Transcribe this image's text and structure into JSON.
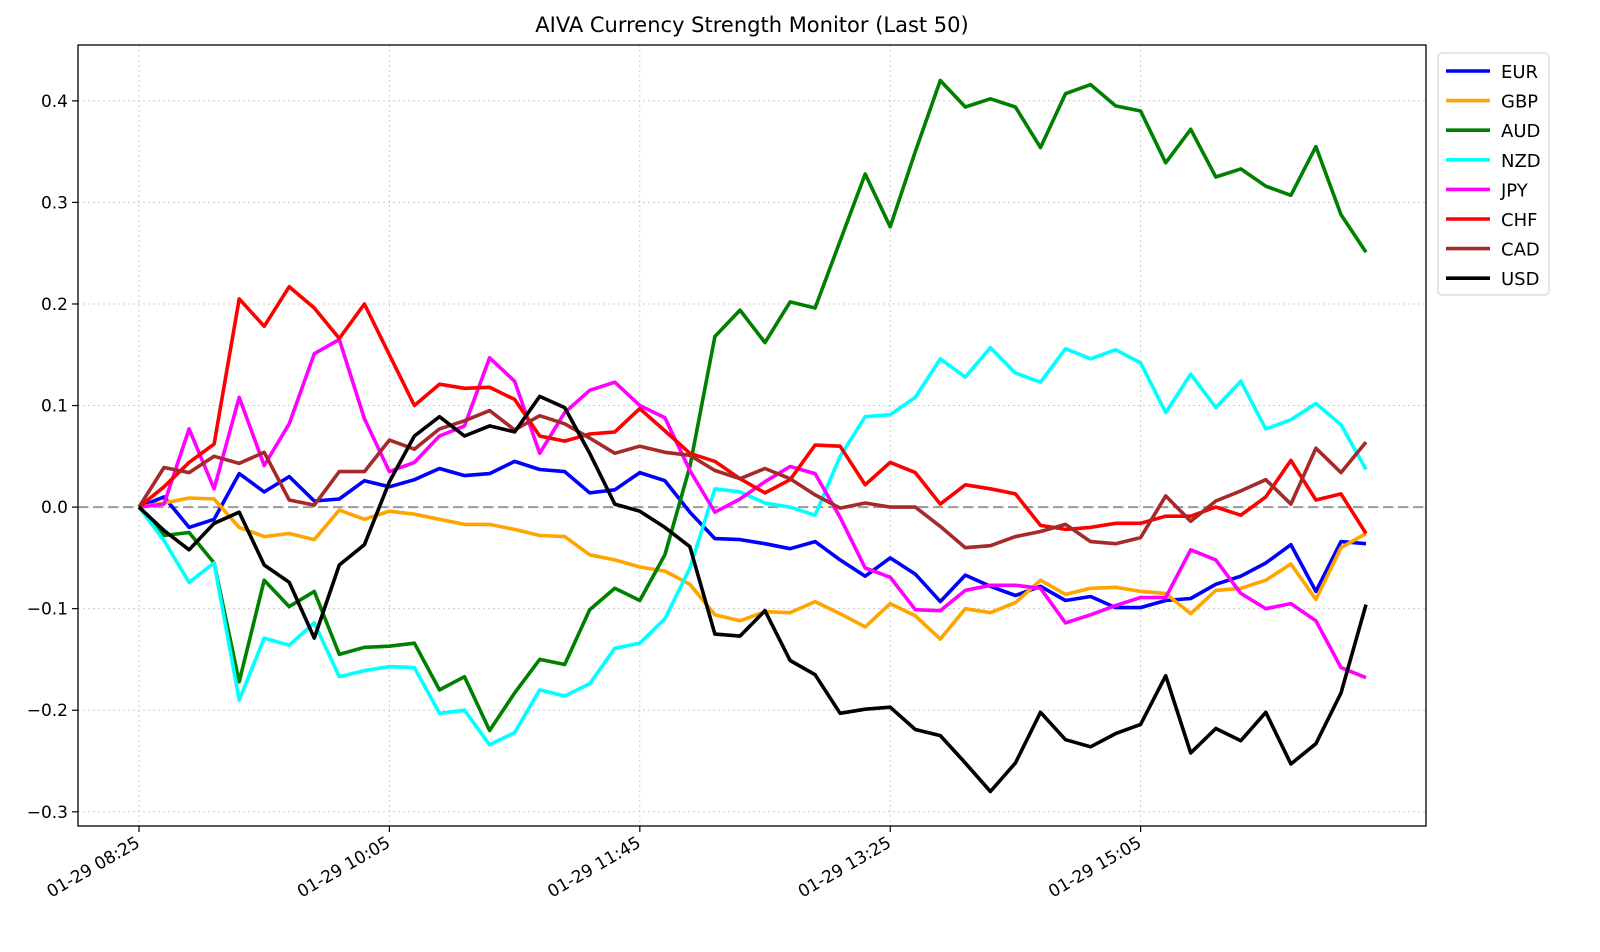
{
  "chart_data": {
    "type": "line",
    "title": "AIVA Currency Strength Monitor (Last 50)",
    "xlabel": "",
    "ylabel": "",
    "x": [
      "01-29 08:25",
      "01-29 08:35",
      "01-29 08:45",
      "01-29 08:55",
      "01-29 09:05",
      "01-29 09:15",
      "01-29 09:25",
      "01-29 09:35",
      "01-29 09:45",
      "01-29 09:55",
      "01-29 10:05",
      "01-29 10:15",
      "01-29 10:25",
      "01-29 10:35",
      "01-29 10:45",
      "01-29 10:55",
      "01-29 11:05",
      "01-29 11:15",
      "01-29 11:25",
      "01-29 11:35",
      "01-29 11:45",
      "01-29 11:55",
      "01-29 12:05",
      "01-29 12:15",
      "01-29 12:25",
      "01-29 12:35",
      "01-29 12:45",
      "01-29 12:55",
      "01-29 13:05",
      "01-29 13:15",
      "01-29 13:25",
      "01-29 13:35",
      "01-29 13:45",
      "01-29 13:55",
      "01-29 14:05",
      "01-29 14:15",
      "01-29 14:25",
      "01-29 14:35",
      "01-29 14:45",
      "01-29 14:55",
      "01-29 15:05",
      "01-29 15:15",
      "01-29 15:25",
      "01-29 15:35",
      "01-29 15:45",
      "01-29 15:55",
      "01-29 16:05",
      "01-29 16:15",
      "01-29 16:25",
      "01-29 16:35"
    ],
    "xticklabels": [
      "01-29 08:25",
      "01-29 10:05",
      "01-29 11:45",
      "01-29 13:25",
      "01-29 15:05"
    ],
    "yticks": [
      -0.3,
      -0.2,
      -0.1,
      0.0,
      0.1,
      0.2,
      0.3,
      0.4
    ],
    "yticklabels": [
      "−0.3",
      "−0.2",
      "−0.1",
      "0.0",
      "0.1",
      "0.2",
      "0.3",
      "0.4"
    ],
    "ylim": [
      -0.314,
      0.455
    ],
    "grid": true,
    "reference_line": 0.0,
    "legend_placement": "outside-top-right",
    "series": [
      {
        "name": "EUR",
        "color": "#0000ff",
        "values": [
          0,
          0.01,
          -0.02,
          -0.012,
          0.033,
          0.015,
          0.03,
          0.006,
          0.008,
          0.026,
          0.02,
          0.027,
          0.038,
          0.031,
          0.033,
          0.045,
          0.037,
          0.035,
          0.014,
          0.017,
          0.034,
          0.026,
          -0.005,
          -0.031,
          -0.032,
          -0.036,
          -0.041,
          -0.034,
          -0.052,
          -0.068,
          -0.05,
          -0.066,
          -0.093,
          -0.067,
          -0.078,
          -0.087,
          -0.078,
          -0.092,
          -0.088,
          -0.099,
          -0.099,
          -0.092,
          -0.09,
          -0.076,
          -0.068,
          -0.055,
          -0.037,
          -0.083,
          -0.034,
          -0.036
        ]
      },
      {
        "name": "GBP",
        "color": "#ffa500",
        "values": [
          0,
          0.004,
          0.009,
          0.008,
          -0.02,
          -0.029,
          -0.026,
          -0.032,
          -0.003,
          -0.012,
          -0.004,
          -0.007,
          -0.012,
          -0.017,
          -0.017,
          -0.022,
          -0.028,
          -0.029,
          -0.047,
          -0.052,
          -0.059,
          -0.063,
          -0.076,
          -0.106,
          -0.112,
          -0.103,
          -0.104,
          -0.093,
          -0.105,
          -0.118,
          -0.095,
          -0.107,
          -0.13,
          -0.1,
          -0.104,
          -0.094,
          -0.072,
          -0.086,
          -0.08,
          -0.079,
          -0.083,
          -0.085,
          -0.105,
          -0.082,
          -0.08,
          -0.072,
          -0.056,
          -0.091,
          -0.04,
          -0.026
        ]
      },
      {
        "name": "AUD",
        "color": "#008000",
        "values": [
          0,
          -0.028,
          -0.025,
          -0.055,
          -0.172,
          -0.072,
          -0.098,
          -0.083,
          -0.145,
          -0.138,
          -0.137,
          -0.134,
          -0.18,
          -0.167,
          -0.22,
          -0.183,
          -0.15,
          -0.155,
          -0.101,
          -0.08,
          -0.092,
          -0.047,
          0.04,
          0.168,
          0.194,
          0.162,
          0.202,
          0.196,
          0.262,
          0.328,
          0.276,
          0.35,
          0.42,
          0.394,
          0.402,
          0.394,
          0.354,
          0.407,
          0.416,
          0.395,
          0.39,
          0.339,
          0.372,
          0.325,
          0.333,
          0.316,
          0.307,
          0.355,
          0.288,
          0.251
        ]
      },
      {
        "name": "NZD",
        "color": "#00ffff",
        "values": [
          0,
          -0.033,
          -0.074,
          -0.055,
          -0.19,
          -0.129,
          -0.136,
          -0.114,
          -0.167,
          -0.161,
          -0.157,
          -0.158,
          -0.203,
          -0.2,
          -0.234,
          -0.222,
          -0.18,
          -0.186,
          -0.174,
          -0.139,
          -0.134,
          -0.11,
          -0.06,
          0.018,
          0.015,
          0.004,
          0.0,
          -0.008,
          0.05,
          0.089,
          0.091,
          0.108,
          0.146,
          0.128,
          0.157,
          0.132,
          0.123,
          0.156,
          0.146,
          0.155,
          0.142,
          0.093,
          0.131,
          0.098,
          0.124,
          0.077,
          0.086,
          0.102,
          0.081,
          0.037
        ]
      },
      {
        "name": "JPY",
        "color": "#ff00ff",
        "values": [
          0,
          0.003,
          0.077,
          0.018,
          0.108,
          0.041,
          0.082,
          0.151,
          0.165,
          0.087,
          0.035,
          0.044,
          0.07,
          0.08,
          0.147,
          0.124,
          0.053,
          0.093,
          0.115,
          0.123,
          0.1,
          0.088,
          0.036,
          -0.005,
          0.008,
          0.025,
          0.04,
          0.033,
          -0.01,
          -0.06,
          -0.069,
          -0.101,
          -0.102,
          -0.082,
          -0.077,
          -0.077,
          -0.08,
          -0.114,
          -0.106,
          -0.097,
          -0.089,
          -0.089,
          -0.042,
          -0.052,
          -0.085,
          -0.1,
          -0.095,
          -0.112,
          -0.158,
          -0.168
        ]
      },
      {
        "name": "CHF",
        "color": "#ff0000",
        "values": [
          0,
          0.02,
          0.044,
          0.062,
          0.205,
          0.178,
          0.217,
          0.196,
          0.166,
          0.2,
          0.15,
          0.1,
          0.121,
          0.117,
          0.118,
          0.106,
          0.07,
          0.065,
          0.072,
          0.074,
          0.097,
          0.075,
          0.053,
          0.045,
          0.028,
          0.014,
          0.027,
          0.061,
          0.06,
          0.022,
          0.044,
          0.034,
          0.003,
          0.022,
          0.018,
          0.013,
          -0.018,
          -0.022,
          -0.02,
          -0.016,
          -0.016,
          -0.009,
          -0.009,
          0.0,
          -0.008,
          0.01,
          0.046,
          0.007,
          0.013,
          -0.026
        ]
      },
      {
        "name": "CAD",
        "color": "#a52a2a",
        "values": [
          0,
          0.039,
          0.034,
          0.05,
          0.043,
          0.054,
          0.007,
          0.002,
          0.035,
          0.035,
          0.066,
          0.057,
          0.077,
          0.085,
          0.095,
          0.076,
          0.09,
          0.082,
          0.068,
          0.053,
          0.06,
          0.054,
          0.051,
          0.036,
          0.028,
          0.038,
          0.028,
          0.012,
          -0.001,
          0.004,
          0.0,
          0.0,
          -0.019,
          -0.04,
          -0.038,
          -0.029,
          -0.024,
          -0.017,
          -0.034,
          -0.036,
          -0.03,
          0.011,
          -0.014,
          0.006,
          0.016,
          0.027,
          0.003,
          0.058,
          0.034,
          0.064
        ]
      },
      {
        "name": "USD",
        "color": "#000000",
        "values": [
          0,
          -0.023,
          -0.042,
          -0.016,
          -0.005,
          -0.057,
          -0.074,
          -0.129,
          -0.057,
          -0.037,
          0.025,
          0.07,
          0.089,
          0.07,
          0.08,
          0.074,
          0.109,
          0.098,
          0.053,
          0.003,
          -0.004,
          -0.02,
          -0.039,
          -0.125,
          -0.127,
          -0.102,
          -0.151,
          -0.165,
          -0.203,
          -0.199,
          -0.197,
          -0.219,
          -0.225,
          -0.252,
          -0.28,
          -0.252,
          -0.202,
          -0.229,
          -0.236,
          -0.223,
          -0.214,
          -0.166,
          -0.242,
          -0.218,
          -0.23,
          -0.202,
          -0.253,
          -0.233,
          -0.183,
          -0.096
        ]
      }
    ]
  }
}
